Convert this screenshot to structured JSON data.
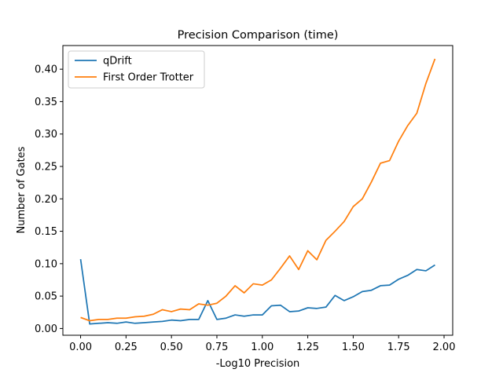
{
  "chart_data": {
    "type": "line",
    "title": "Precision Comparison (time)",
    "xlabel": "-Log10 Precision",
    "ylabel": "Number of Gates",
    "xlim": [
      -0.0975,
      2.0475
    ],
    "ylim": [
      -0.0104,
      0.4365
    ],
    "xticks": [
      0.0,
      0.25,
      0.5,
      0.75,
      1.0,
      1.25,
      1.5,
      1.75,
      2.0
    ],
    "xtick_labels": [
      "0.00",
      "0.25",
      "0.50",
      "0.75",
      "1.00",
      "1.25",
      "1.50",
      "1.75",
      "2.00"
    ],
    "yticks": [
      0.0,
      0.05,
      0.1,
      0.15,
      0.2,
      0.25,
      0.3,
      0.35,
      0.4
    ],
    "ytick_labels": [
      "0.00",
      "0.05",
      "0.10",
      "0.15",
      "0.20",
      "0.25",
      "0.30",
      "0.35",
      "0.40"
    ],
    "grid": false,
    "legend_position": "top-left",
    "x": [
      0.0,
      0.05,
      0.1,
      0.15,
      0.2,
      0.25,
      0.3,
      0.35,
      0.4,
      0.45,
      0.5,
      0.55,
      0.6,
      0.65,
      0.7,
      0.75,
      0.8,
      0.85,
      0.9,
      0.95,
      1.0,
      1.05,
      1.1,
      1.15,
      1.2,
      1.25,
      1.3,
      1.35,
      1.4,
      1.45,
      1.5,
      1.55,
      1.6,
      1.65,
      1.7,
      1.75,
      1.8,
      1.85,
      1.9,
      1.95
    ],
    "series": [
      {
        "name": "qDrift",
        "color": "#1f77b4",
        "values": [
          0.107,
          0.007,
          0.008,
          0.009,
          0.008,
          0.01,
          0.008,
          0.009,
          0.01,
          0.011,
          0.013,
          0.012,
          0.014,
          0.014,
          0.043,
          0.014,
          0.016,
          0.021,
          0.019,
          0.021,
          0.021,
          0.035,
          0.036,
          0.026,
          0.027,
          0.032,
          0.031,
          0.033,
          0.051,
          0.043,
          0.049,
          0.057,
          0.059,
          0.066,
          0.067,
          0.076,
          0.082,
          0.091,
          0.089,
          0.098
        ]
      },
      {
        "name": "First Order Trotter",
        "color": "#ff7f0e",
        "values": [
          0.017,
          0.012,
          0.014,
          0.014,
          0.016,
          0.016,
          0.018,
          0.019,
          0.022,
          0.029,
          0.026,
          0.03,
          0.029,
          0.038,
          0.036,
          0.039,
          0.05,
          0.066,
          0.055,
          0.069,
          0.067,
          0.075,
          0.093,
          0.112,
          0.091,
          0.12,
          0.106,
          0.136,
          0.15,
          0.165,
          0.188,
          0.2,
          0.226,
          0.255,
          0.259,
          0.289,
          0.313,
          0.332,
          0.378,
          0.416
        ]
      }
    ]
  }
}
